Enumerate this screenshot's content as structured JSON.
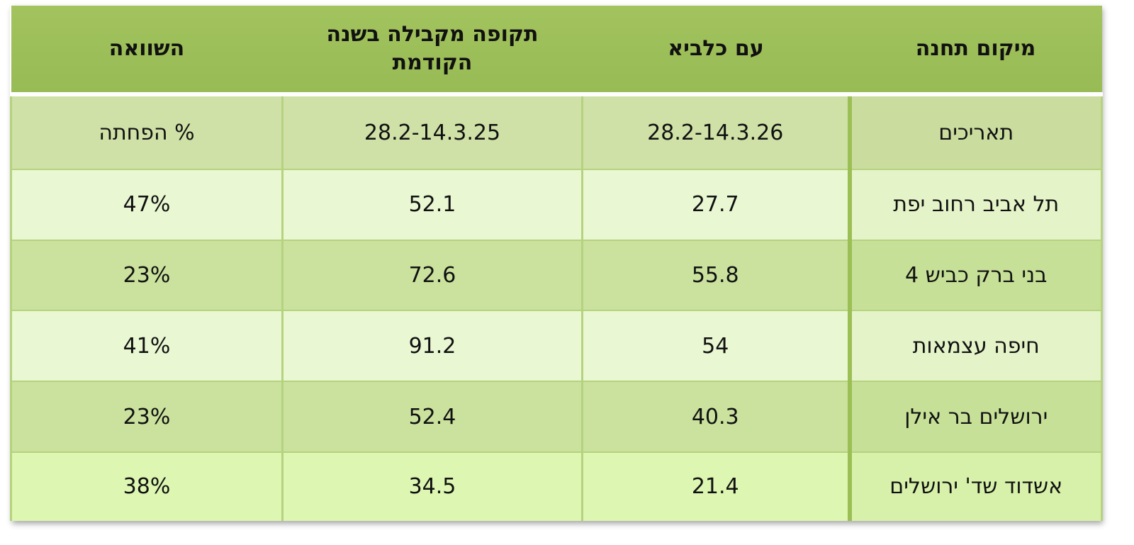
{
  "table": {
    "header": [
      "מיקום תחנה",
      "עם כלביא",
      "תקופה מקבילה בשנה הקודמת",
      "השוואה"
    ],
    "rows": [
      [
        "תאריכים",
        "28.2-14.3.26",
        "28.2-14.3.25",
        "% הפחתה"
      ],
      [
        "תל אביב רחוב יפת",
        "27.7",
        "52.1",
        "47%"
      ],
      [
        "בני ברק כביש 4",
        "55.8",
        "72.6",
        "23%"
      ],
      [
        "חיפה עצמאות",
        "54",
        "91.2",
        "41%"
      ],
      [
        "ירושלים בר אילן",
        "40.3",
        "52.4",
        "23%"
      ],
      [
        "אשדוד שד' ירושלים",
        "21.4",
        "34.5",
        "38%"
      ]
    ]
  }
}
